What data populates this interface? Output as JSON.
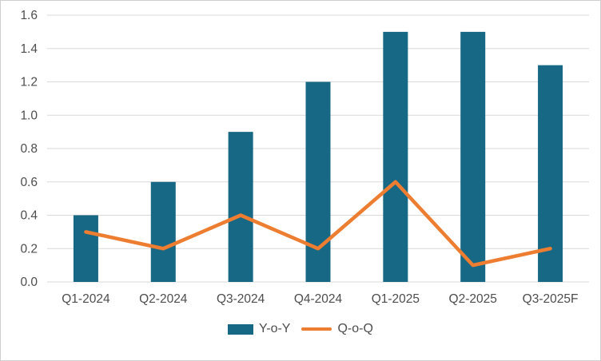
{
  "chart_data": {
    "type": "bar",
    "subtype": "bar-with-line-overlay",
    "title": "",
    "xlabel": "",
    "ylabel": "",
    "categories": [
      "Q1-2024",
      "Q2-2024",
      "Q3-2024",
      "Q4-2024",
      "Q1-2025",
      "Q2-2025",
      "Q3-2025F"
    ],
    "series": [
      {
        "name": "Y-o-Y",
        "type": "bar",
        "color": "#176884",
        "values": [
          0.4,
          0.6,
          0.9,
          1.2,
          1.5,
          1.5,
          1.3
        ]
      },
      {
        "name": "Q-o-Q",
        "type": "line",
        "color": "#ED7D31",
        "values": [
          0.3,
          0.2,
          0.4,
          0.2,
          0.6,
          0.1,
          0.2
        ]
      }
    ],
    "ylim": [
      0,
      1.6
    ],
    "ytick_step": 0.2,
    "ytick_labels": [
      "0.0",
      "0.2",
      "0.4",
      "0.6",
      "0.8",
      "1.0",
      "1.2",
      "1.4",
      "1.6"
    ],
    "grid": true,
    "gridline_color": "#d9d9d9",
    "axis_text_color": "#4d4d4d",
    "legend_position": "bottom"
  }
}
